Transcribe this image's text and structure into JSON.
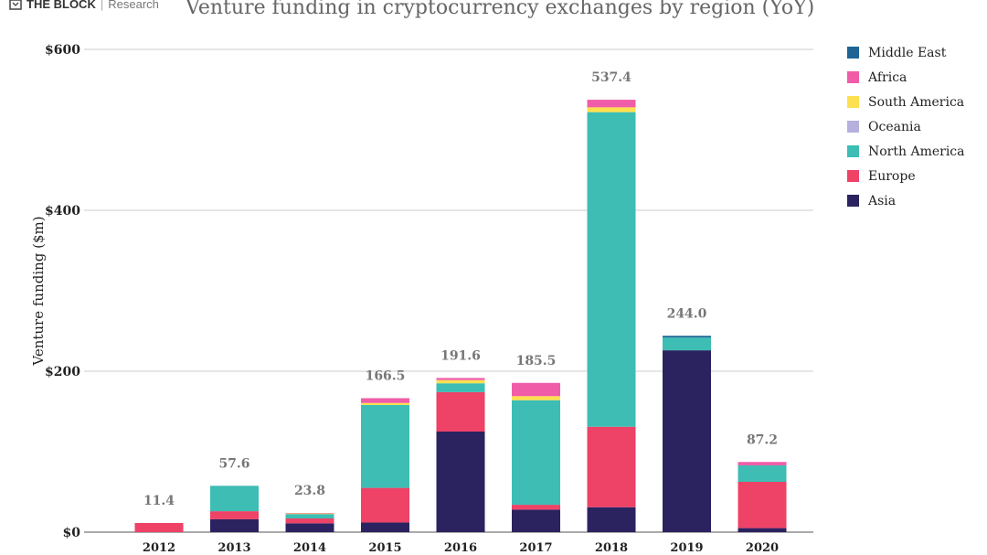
{
  "header": {
    "brand": "THE BLOCK",
    "brand_sub": "Research"
  },
  "chart_data": {
    "type": "bar",
    "stacked": true,
    "title": "Venture funding in cryptocurrency exchanges by region (YoY)",
    "ylabel": "Venture funding ($m)",
    "xlabel": "",
    "ylim": [
      0,
      600
    ],
    "yticks": [
      {
        "v": 0,
        "label": "$0"
      },
      {
        "v": 200,
        "label": "$200"
      },
      {
        "v": 400,
        "label": "$400"
      },
      {
        "v": 600,
        "label": "$600"
      }
    ],
    "grid": true,
    "legend_position": "right",
    "categories": [
      "2012",
      "2013",
      "2014",
      "2015",
      "2016",
      "2017",
      "2018",
      "2019",
      "2020"
    ],
    "totals": [
      "11.4",
      "57.6",
      "23.8",
      "166.5",
      "191.6",
      "185.5",
      "537.4",
      "244.0",
      "87.2"
    ],
    "series": [
      {
        "name": "Asia",
        "color": "#2b2260",
        "values": [
          0,
          16,
          11,
          12,
          125,
          28,
          31,
          226,
          5
        ]
      },
      {
        "name": "Europe",
        "color": "#ee4266",
        "values": [
          11.4,
          10,
          6,
          43,
          49,
          6,
          100,
          0,
          57.5
        ]
      },
      {
        "name": "North America",
        "color": "#3dbdb3",
        "values": [
          0,
          31.6,
          5.5,
          103,
          11,
          130,
          391,
          16,
          20.5
        ]
      },
      {
        "name": "Oceania",
        "color": "#b5b0dc",
        "values": [
          0,
          0,
          0,
          0,
          0,
          0,
          0,
          0,
          0
        ]
      },
      {
        "name": "South America",
        "color": "#fde04f",
        "values": [
          0,
          0,
          0.7,
          2.5,
          4,
          5,
          6,
          0,
          0
        ]
      },
      {
        "name": "Africa",
        "color": "#f05ca8",
        "values": [
          0,
          0,
          0.6,
          6,
          2.6,
          16.5,
          9.4,
          0,
          4.2
        ]
      },
      {
        "name": "Middle East",
        "color": "#1f6494",
        "values": [
          0,
          0,
          0,
          0,
          0,
          0,
          0,
          2,
          0
        ]
      }
    ]
  }
}
